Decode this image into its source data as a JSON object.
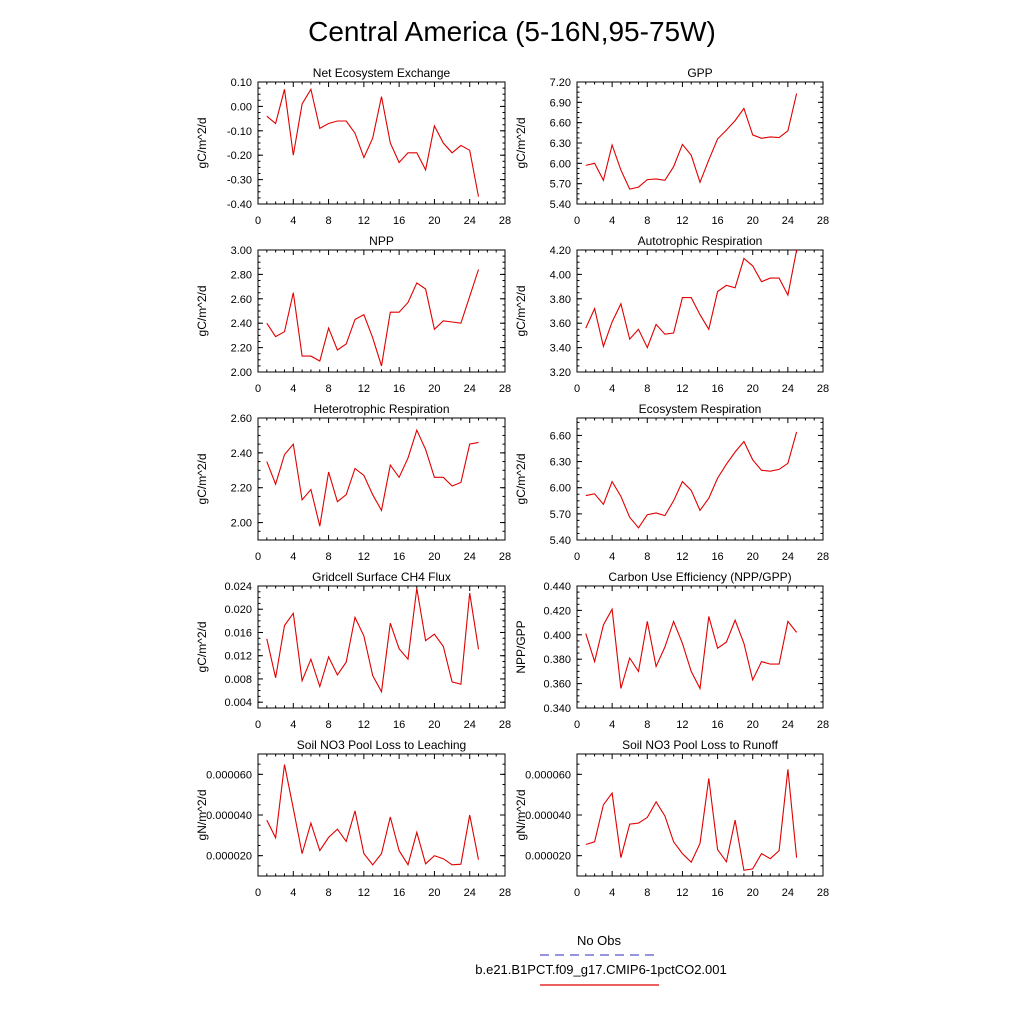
{
  "title": "Central America (5-16N,95-75W)",
  "legend": {
    "obs_label": "No Obs",
    "obs_color": "#5555cc",
    "model_label": "b.e21.B1PCT.f09_g17.CMIP6-1pctCO2.001",
    "model_color": "#e00000"
  },
  "chart_data": [
    {
      "type": "line",
      "title": "Net Ecosystem Exchange",
      "ylabel": "gC/m^2/d",
      "xlim": [
        0,
        28
      ],
      "xticks": [
        "0",
        "4",
        "8",
        "12",
        "16",
        "20",
        "24",
        "28"
      ],
      "ylim": [
        -0.4,
        0.1
      ],
      "yticks": [
        "-0.40",
        "-0.30",
        "-0.20",
        "-0.10",
        "0.00",
        "0.10"
      ],
      "series": [
        {
          "x": [
            1,
            2,
            3,
            4,
            5,
            6,
            7,
            8,
            9,
            10,
            11,
            12,
            13,
            14,
            15,
            16,
            17,
            18,
            19,
            20,
            21,
            22,
            23,
            24,
            25
          ],
          "y": [
            -0.04,
            -0.07,
            0.07,
            -0.2,
            0.01,
            0.07,
            -0.09,
            -0.07,
            -0.06,
            -0.06,
            -0.11,
            -0.21,
            -0.13,
            0.04,
            -0.15,
            -0.23,
            -0.19,
            -0.19,
            -0.26,
            -0.08,
            -0.15,
            -0.19,
            -0.16,
            -0.18,
            -0.37
          ]
        }
      ]
    },
    {
      "type": "line",
      "title": "GPP",
      "ylabel": "gC/m^2/d",
      "xlim": [
        0,
        28
      ],
      "xticks": [
        "0",
        "4",
        "8",
        "12",
        "16",
        "20",
        "24",
        "28"
      ],
      "ylim": [
        5.4,
        7.2
      ],
      "yticks": [
        "5.40",
        "5.70",
        "6.00",
        "6.30",
        "6.60",
        "6.90",
        "7.20"
      ],
      "series": [
        {
          "x": [
            1,
            2,
            3,
            4,
            5,
            6,
            7,
            8,
            9,
            10,
            11,
            12,
            13,
            14,
            15,
            16,
            17,
            18,
            19,
            20,
            21,
            22,
            23,
            24,
            25
          ],
          "y": [
            5.97,
            6.0,
            5.75,
            6.27,
            5.9,
            5.62,
            5.65,
            5.76,
            5.77,
            5.75,
            5.95,
            6.28,
            6.12,
            5.72,
            6.05,
            6.36,
            6.49,
            6.63,
            6.81,
            6.42,
            6.37,
            6.39,
            6.38,
            6.48,
            7.03
          ]
        }
      ]
    },
    {
      "type": "line",
      "title": "NPP",
      "ylabel": "gC/m^2/d",
      "xlim": [
        0,
        28
      ],
      "xticks": [
        "0",
        "4",
        "8",
        "12",
        "16",
        "20",
        "24",
        "28"
      ],
      "ylim": [
        2.0,
        3.0
      ],
      "yticks": [
        "2.00",
        "2.20",
        "2.40",
        "2.60",
        "2.80",
        "3.00"
      ],
      "series": [
        {
          "x": [
            1,
            2,
            3,
            4,
            5,
            6,
            7,
            8,
            9,
            10,
            11,
            12,
            13,
            14,
            15,
            16,
            17,
            18,
            19,
            20,
            21,
            22,
            23,
            24,
            25
          ],
          "y": [
            2.4,
            2.29,
            2.33,
            2.65,
            2.13,
            2.13,
            2.09,
            2.36,
            2.18,
            2.23,
            2.43,
            2.47,
            2.28,
            2.05,
            2.49,
            2.49,
            2.57,
            2.73,
            2.68,
            2.35,
            2.42,
            2.41,
            2.4,
            2.62,
            2.84
          ]
        }
      ]
    },
    {
      "type": "line",
      "title": "Autotrophic Respiration",
      "ylabel": "gC/m^2/d",
      "xlim": [
        0,
        28
      ],
      "xticks": [
        "0",
        "4",
        "8",
        "12",
        "16",
        "20",
        "24",
        "28"
      ],
      "ylim": [
        3.2,
        4.2
      ],
      "yticks": [
        "3.20",
        "3.40",
        "3.60",
        "3.80",
        "4.00",
        "4.20"
      ],
      "series": [
        {
          "x": [
            1,
            2,
            3,
            4,
            5,
            6,
            7,
            8,
            9,
            10,
            11,
            12,
            13,
            14,
            15,
            16,
            17,
            18,
            19,
            20,
            21,
            22,
            23,
            24,
            25
          ],
          "y": [
            3.56,
            3.72,
            3.41,
            3.61,
            3.76,
            3.47,
            3.55,
            3.4,
            3.59,
            3.51,
            3.52,
            3.81,
            3.81,
            3.67,
            3.55,
            3.86,
            3.91,
            3.89,
            4.13,
            4.07,
            3.94,
            3.97,
            3.97,
            3.83,
            4.2
          ]
        }
      ]
    },
    {
      "type": "line",
      "title": "Heterotrophic Respiration",
      "ylabel": "gC/m^2/d",
      "xlim": [
        0,
        28
      ],
      "xticks": [
        "0",
        "4",
        "8",
        "12",
        "16",
        "20",
        "24",
        "28"
      ],
      "ylim": [
        1.9,
        2.6
      ],
      "yticks": [
        "2.00",
        "2.20",
        "2.40",
        "2.60"
      ],
      "series": [
        {
          "x": [
            1,
            2,
            3,
            4,
            5,
            6,
            7,
            8,
            9,
            10,
            11,
            12,
            13,
            14,
            15,
            16,
            17,
            18,
            19,
            20,
            21,
            22,
            23,
            24,
            25
          ],
          "y": [
            2.35,
            2.22,
            2.39,
            2.45,
            2.13,
            2.19,
            1.98,
            2.29,
            2.12,
            2.16,
            2.31,
            2.27,
            2.16,
            2.07,
            2.33,
            2.26,
            2.37,
            2.53,
            2.42,
            2.26,
            2.26,
            2.21,
            2.23,
            2.45,
            2.46
          ]
        }
      ]
    },
    {
      "type": "line",
      "title": "Ecosystem Respiration",
      "ylabel": "gC/m^2/d",
      "xlim": [
        0,
        28
      ],
      "xticks": [
        "0",
        "4",
        "8",
        "12",
        "16",
        "20",
        "24",
        "28"
      ],
      "ylim": [
        5.4,
        6.8
      ],
      "yticks": [
        "5.40",
        "5.70",
        "6.00",
        "6.30",
        "6.60"
      ],
      "series": [
        {
          "x": [
            1,
            2,
            3,
            4,
            5,
            6,
            7,
            8,
            9,
            10,
            11,
            12,
            13,
            14,
            15,
            16,
            17,
            18,
            19,
            20,
            21,
            22,
            23,
            24,
            25
          ],
          "y": [
            5.91,
            5.93,
            5.81,
            6.07,
            5.9,
            5.66,
            5.54,
            5.69,
            5.71,
            5.68,
            5.85,
            6.07,
            5.97,
            5.74,
            5.88,
            6.11,
            6.27,
            6.41,
            6.53,
            6.32,
            6.2,
            6.19,
            6.21,
            6.28,
            6.64
          ]
        }
      ]
    },
    {
      "type": "line",
      "title": "Gridcell Surface CH4 Flux",
      "ylabel": "gC/m^2/d",
      "xlim": [
        0,
        28
      ],
      "xticks": [
        "0",
        "4",
        "8",
        "12",
        "16",
        "20",
        "24",
        "28"
      ],
      "ylim": [
        0.003,
        0.024
      ],
      "yticks": [
        "0.004",
        "0.008",
        "0.012",
        "0.016",
        "0.020",
        "0.024"
      ],
      "series": [
        {
          "x": [
            1,
            2,
            3,
            4,
            5,
            6,
            7,
            8,
            9,
            10,
            11,
            12,
            13,
            14,
            15,
            16,
            17,
            18,
            19,
            20,
            21,
            22,
            23,
            24,
            25
          ],
          "y": [
            0.0149,
            0.0082,
            0.0172,
            0.0193,
            0.0077,
            0.0114,
            0.0067,
            0.0118,
            0.0087,
            0.0109,
            0.0186,
            0.0154,
            0.0086,
            0.0058,
            0.0176,
            0.0132,
            0.0114,
            0.0236,
            0.0146,
            0.0157,
            0.0136,
            0.0075,
            0.0071,
            0.0228,
            0.0131
          ]
        }
      ]
    },
    {
      "type": "line",
      "title": "Carbon Use Efficiency (NPP/GPP)",
      "ylabel": "NPP/GPP",
      "xlim": [
        0,
        28
      ],
      "xticks": [
        "0",
        "4",
        "8",
        "12",
        "16",
        "20",
        "24",
        "28"
      ],
      "ylim": [
        0.34,
        0.44
      ],
      "yticks": [
        "0.340",
        "0.360",
        "0.380",
        "0.400",
        "0.420",
        "0.440"
      ],
      "series": [
        {
          "x": [
            1,
            2,
            3,
            4,
            5,
            6,
            7,
            8,
            9,
            10,
            11,
            12,
            13,
            14,
            15,
            16,
            17,
            18,
            19,
            20,
            21,
            22,
            23,
            24,
            25
          ],
          "y": [
            0.401,
            0.378,
            0.408,
            0.421,
            0.356,
            0.381,
            0.37,
            0.411,
            0.374,
            0.39,
            0.411,
            0.393,
            0.37,
            0.356,
            0.415,
            0.389,
            0.394,
            0.412,
            0.393,
            0.363,
            0.378,
            0.376,
            0.376,
            0.411,
            0.402
          ]
        }
      ]
    },
    {
      "type": "line",
      "title": "Soil NO3 Pool Loss to Leaching",
      "ylabel": "gN/m^2/d",
      "xlim": [
        0,
        28
      ],
      "xticks": [
        "0",
        "4",
        "8",
        "12",
        "16",
        "20",
        "24",
        "28"
      ],
      "ylim": [
        1e-05,
        7e-05
      ],
      "yticks": [
        "0.000020",
        "0.000040",
        "0.000060"
      ],
      "series": [
        {
          "x": [
            1,
            2,
            3,
            4,
            5,
            6,
            7,
            8,
            9,
            10,
            11,
            12,
            13,
            14,
            15,
            16,
            17,
            18,
            19,
            20,
            21,
            22,
            23,
            24,
            25
          ],
          "y": [
            3.75e-05,
            2.88e-05,
            6.48e-05,
            4.32e-05,
            2.1e-05,
            3.6e-05,
            2.25e-05,
            2.9e-05,
            3.3e-05,
            2.7e-05,
            4.2e-05,
            2.1e-05,
            1.55e-05,
            2.1e-05,
            3.9e-05,
            2.25e-05,
            1.55e-05,
            3.15e-05,
            1.6e-05,
            2e-05,
            1.85e-05,
            1.55e-05,
            1.58e-05,
            4e-05,
            1.8e-05
          ]
        }
      ]
    },
    {
      "type": "line",
      "title": "Soil NO3 Pool Loss to Runoff",
      "ylabel": "gN/m^2/d",
      "xlim": [
        0,
        28
      ],
      "xticks": [
        "0",
        "4",
        "8",
        "12",
        "16",
        "20",
        "24",
        "28"
      ],
      "ylim": [
        1e-05,
        7e-05
      ],
      "yticks": [
        "0.000020",
        "0.000040",
        "0.000060"
      ],
      "series": [
        {
          "x": [
            1,
            2,
            3,
            4,
            5,
            6,
            7,
            8,
            9,
            10,
            11,
            12,
            13,
            14,
            15,
            16,
            17,
            18,
            19,
            20,
            21,
            22,
            23,
            24,
            25
          ],
          "y": [
            2.55e-05,
            2.68e-05,
            4.5e-05,
            5.08e-05,
            1.9e-05,
            3.55e-05,
            3.6e-05,
            3.88e-05,
            4.65e-05,
            3.95e-05,
            2.68e-05,
            2.1e-05,
            1.68e-05,
            2.6e-05,
            5.8e-05,
            2.3e-05,
            1.7e-05,
            3.75e-05,
            1.28e-05,
            1.35e-05,
            2.1e-05,
            1.85e-05,
            2.25e-05,
            6.25e-05,
            1.9e-05
          ]
        }
      ]
    }
  ]
}
